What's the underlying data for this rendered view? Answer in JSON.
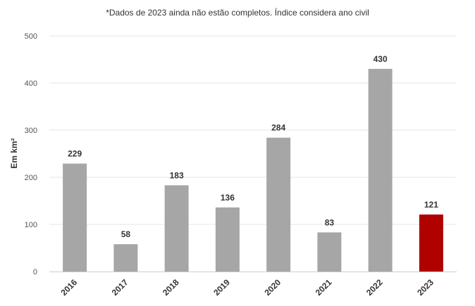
{
  "note": "*Dados de 2023 ainda não estão completos. Índice considera ano civil",
  "colors": {
    "bar_default": "#a6a6a6",
    "bar_highlight": "#b00000",
    "grid": "#e6e6e6",
    "axis": "#cccccc",
    "text": "#333333"
  },
  "chart_data": {
    "type": "bar",
    "title": "",
    "xlabel": "",
    "ylabel": "Em km²",
    "categories": [
      "2016",
      "2017",
      "2018",
      "2019",
      "2020",
      "2021",
      "2022",
      "2023"
    ],
    "values": [
      229,
      58,
      183,
      136,
      284,
      83,
      430,
      121
    ],
    "highlight_category": "2023",
    "ylim": [
      0,
      500
    ],
    "yticks": [
      0,
      100,
      200,
      300,
      400,
      500
    ],
    "grid": true,
    "data_labels": true,
    "x_tick_rotation_deg": -45
  }
}
